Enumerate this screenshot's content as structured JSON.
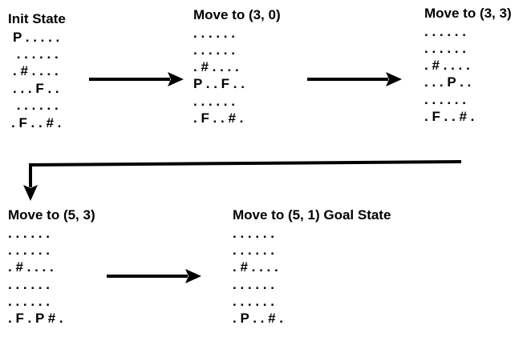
{
  "states": [
    {
      "title": "Init State",
      "rows": [
        "P . . . . .",
        " . . . . . .",
        ". # . . . .",
        ". . . F . .",
        " . . . . . .",
        ". F . . # ."
      ]
    },
    {
      "title": "Move to (3, 0)",
      "rows": [
        ". . . . . .",
        ". . . . . .",
        ". # . . . .",
        "P . . F . .",
        ". . . . . .",
        ". F . . # ."
      ]
    },
    {
      "title": "Move to (3, 3)",
      "rows": [
        ". . . . . .",
        ". . . . . .",
        ". # . . . .",
        ". . . P . .",
        ". . . . . .",
        ". F . . # ."
      ]
    },
    {
      "title": "Move to (5, 3)",
      "rows": [
        ". . . . . .",
        ". . . . . .",
        ". # . . . .",
        ". . . . . .",
        ". . . . . .",
        ". F . P # ."
      ]
    },
    {
      "title": "Move to (5, 1) Goal State",
      "rows": [
        ". . . . . .",
        ". . . . . .",
        ". # . . . .",
        ". . . . . .",
        ". . . . . .",
        ". P . . # ."
      ]
    }
  ],
  "colors": {
    "text": "#000000",
    "arrow": "#000000",
    "background": "#ffffff"
  }
}
